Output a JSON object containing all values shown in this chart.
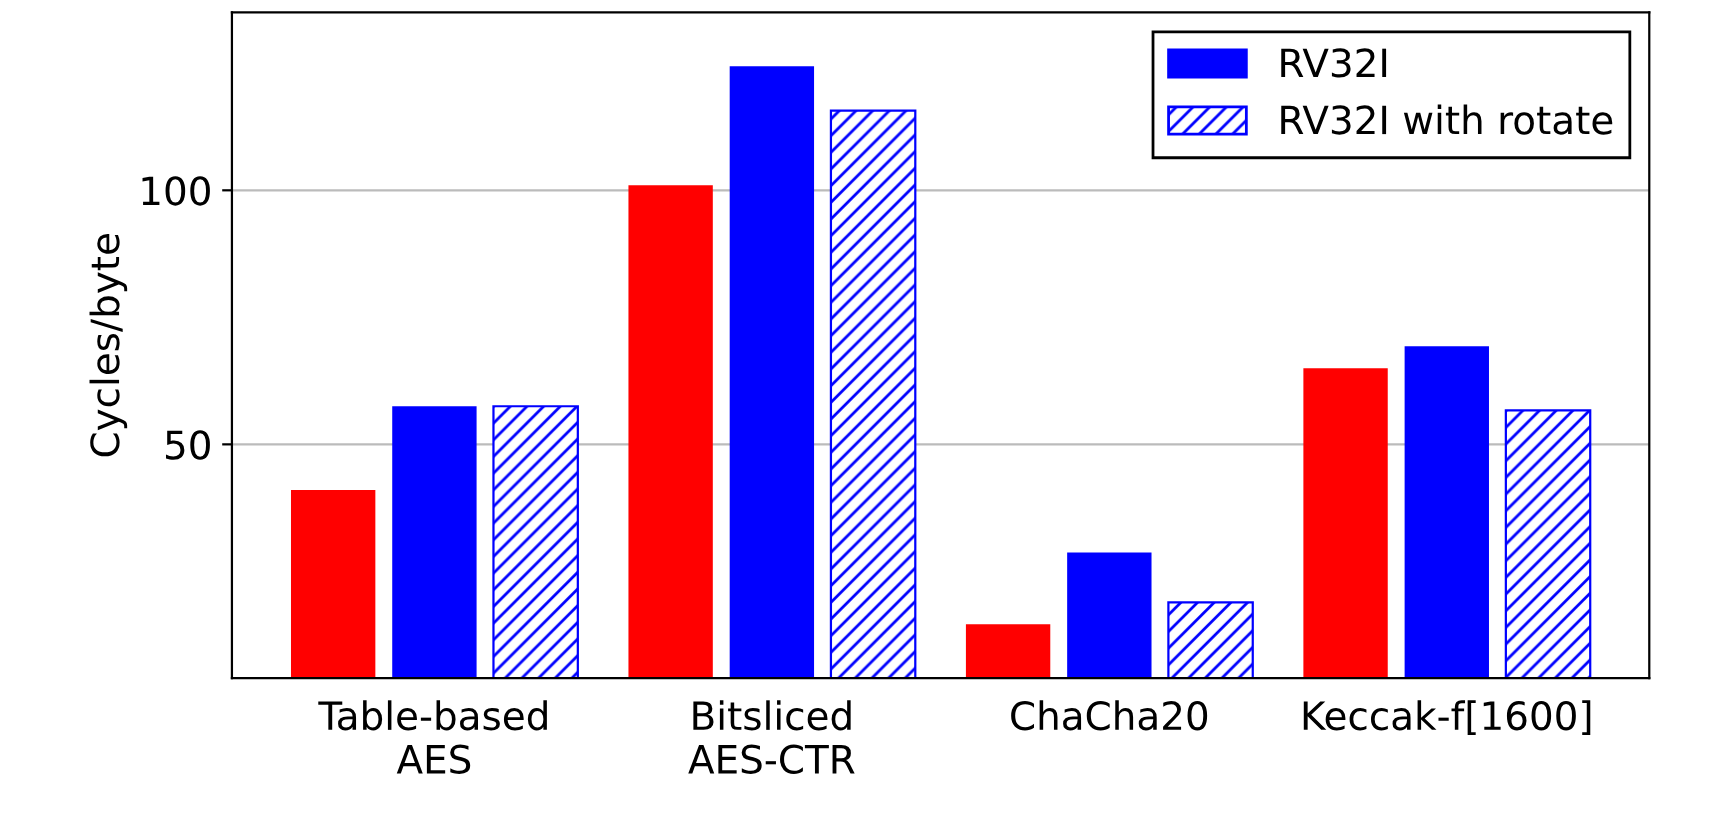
{
  "chart_data": {
    "type": "bar",
    "ylabel": "Cycles/byte",
    "categories": [
      "Table-based\nAES",
      "Bitsliced\nAES-CTR",
      "ChaCha20",
      "Keccak-f[1600]"
    ],
    "series": [
      {
        "color": "#ff0000",
        "values": [
          41,
          101,
          14.6,
          65
        ]
      },
      {
        "name": "RV32I",
        "color": "#0000ff",
        "values": [
          57.5,
          124.4,
          28.7,
          69.3
        ]
      },
      {
        "name": "RV32I with rotate",
        "color": "#0000ff",
        "values": [
          57.5,
          115.7,
          18.9,
          56.7
        ]
      }
    ],
    "ylim": [
      4,
      135
    ],
    "yticks": [
      50,
      100
    ],
    "grid": "y",
    "legend": "top right"
  }
}
